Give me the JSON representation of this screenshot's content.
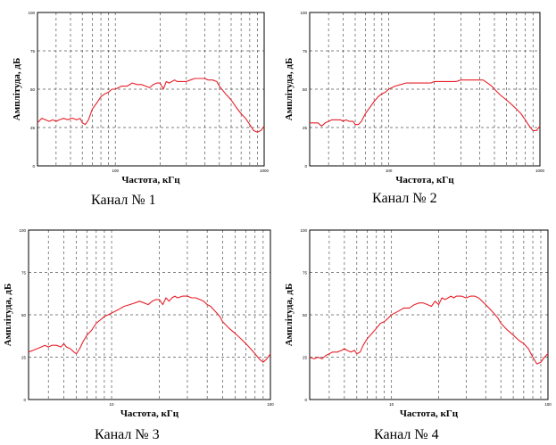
{
  "chart_data": [
    {
      "type": "line",
      "caption": "Канал № 1",
      "xlabel": "Частота, кГц",
      "ylabel": "Амплітуда, дБ",
      "x_scale": "log",
      "xlim": [
        30,
        1000
      ],
      "ylim": [
        0,
        100
      ],
      "x_tick_labels": [
        "100",
        "1000"
      ],
      "y_tick_labels": [
        "0",
        "25",
        "50",
        "75",
        "100"
      ],
      "grid": true,
      "line_color": "#e8202a",
      "series": [
        {
          "x": [
            30,
            32,
            34,
            36,
            38,
            40,
            42,
            45,
            48,
            50,
            52,
            55,
            58,
            60,
            63,
            66,
            70,
            75,
            80,
            85,
            90,
            95,
            100,
            110,
            120,
            130,
            140,
            150,
            160,
            170,
            180,
            190,
            200,
            210,
            220,
            230,
            240,
            250,
            260,
            280,
            300,
            320,
            340,
            360,
            380,
            400,
            420,
            450,
            480,
            500,
            550,
            600,
            650,
            700,
            750,
            800,
            850,
            900,
            950,
            1000
          ],
          "y": [
            28,
            31,
            30,
            29,
            30,
            29,
            30,
            31,
            30,
            31,
            31,
            30,
            31,
            28,
            27,
            30,
            37,
            41,
            45,
            47,
            48,
            50,
            50,
            52,
            52,
            54,
            53,
            53,
            52,
            51,
            53,
            54,
            54,
            50,
            55,
            54,
            55,
            56,
            55,
            55,
            55,
            56,
            57,
            57,
            57,
            57,
            56,
            56,
            55,
            52,
            47,
            43,
            38,
            34,
            31,
            27,
            23,
            22,
            23,
            26
          ]
        }
      ]
    },
    {
      "type": "line",
      "caption": "Канал № 2",
      "xlabel": "Частота, кГц",
      "ylabel": "Амплітуда, дБ",
      "x_scale": "log",
      "xlim": [
        30,
        1000
      ],
      "ylim": [
        0,
        100
      ],
      "x_tick_labels": [
        "100",
        "1000"
      ],
      "y_tick_labels": [
        "0",
        "25",
        "50",
        "75",
        "100"
      ],
      "grid": true,
      "line_color": "#e8202a",
      "series": [
        {
          "x": [
            30,
            32,
            34,
            36,
            38,
            40,
            42,
            45,
            48,
            50,
            52,
            55,
            58,
            60,
            63,
            66,
            70,
            75,
            80,
            85,
            90,
            95,
            100,
            110,
            120,
            130,
            140,
            150,
            160,
            170,
            180,
            190,
            200,
            210,
            220,
            230,
            240,
            250,
            260,
            280,
            300,
            320,
            340,
            360,
            380,
            400,
            420,
            450,
            480,
            500,
            550,
            600,
            650,
            700,
            750,
            800,
            850,
            900,
            950,
            1000
          ],
          "y": [
            28,
            28,
            28,
            26,
            28,
            29,
            30,
            30,
            30,
            29,
            30,
            29,
            29,
            27,
            27,
            29,
            34,
            38,
            42,
            45,
            47,
            48,
            50,
            52,
            53,
            54,
            54,
            54,
            54,
            54,
            54,
            54,
            55,
            55,
            55,
            55,
            55,
            55,
            55,
            55,
            56,
            56,
            56,
            56,
            56,
            56,
            56,
            54,
            52,
            50,
            46,
            43,
            40,
            37,
            34,
            30,
            26,
            23,
            23,
            26
          ]
        }
      ]
    },
    {
      "type": "line",
      "caption": "Канал № 3",
      "xlabel": "Частота, кГц",
      "ylabel": "Амплітуда, дБ",
      "x_scale": "log",
      "xlim": [
        3,
        100
      ],
      "ylim": [
        0,
        100
      ],
      "x_tick_labels": [
        "10",
        "100"
      ],
      "y_tick_labels": [
        "0",
        "25",
        "50",
        "75",
        "100"
      ],
      "grid": true,
      "line_color": "#e8202a",
      "series": [
        {
          "x": [
            3,
            3.2,
            3.4,
            3.6,
            3.8,
            4,
            4.2,
            4.5,
            4.8,
            5,
            5.2,
            5.5,
            5.8,
            6,
            6.3,
            6.6,
            7,
            7.5,
            8,
            8.5,
            9,
            9.5,
            10,
            11,
            12,
            13,
            14,
            15,
            16,
            17,
            18,
            19,
            20,
            21,
            22,
            23,
            24,
            25,
            26,
            28,
            30,
            32,
            34,
            36,
            38,
            40,
            42,
            45,
            48,
            50,
            55,
            60,
            65,
            70,
            75,
            80,
            85,
            90,
            95,
            100
          ],
          "y": [
            28,
            29,
            30,
            31,
            32,
            31,
            32,
            32,
            31,
            33,
            31,
            30,
            28,
            27,
            30,
            34,
            38,
            41,
            45,
            47,
            49,
            50,
            51,
            53,
            55,
            56,
            57,
            58,
            57,
            56,
            58,
            59,
            59,
            56,
            60,
            58,
            60,
            61,
            60,
            61,
            61,
            60,
            60,
            59,
            58,
            56,
            55,
            52,
            49,
            46,
            42,
            39,
            36,
            33,
            30,
            27,
            24,
            22,
            24,
            27
          ]
        }
      ]
    },
    {
      "type": "line",
      "caption": "Канал № 4",
      "xlabel": "Частота, кГц",
      "ylabel": "Амплітуда, дБ",
      "x_scale": "log",
      "xlim": [
        3,
        100
      ],
      "ylim": [
        0,
        100
      ],
      "x_tick_labels": [
        "10",
        "100"
      ],
      "y_tick_labels": [
        "0",
        "25",
        "50",
        "75",
        "100"
      ],
      "grid": true,
      "line_color": "#e8202a",
      "series": [
        {
          "x": [
            3,
            3.2,
            3.4,
            3.6,
            3.8,
            4,
            4.2,
            4.5,
            4.8,
            5,
            5.2,
            5.5,
            5.8,
            6,
            6.3,
            6.6,
            7,
            7.5,
            8,
            8.5,
            9,
            9.5,
            10,
            11,
            12,
            13,
            14,
            15,
            16,
            17,
            18,
            19,
            20,
            21,
            22,
            23,
            24,
            25,
            26,
            28,
            30,
            32,
            34,
            36,
            38,
            40,
            42,
            45,
            48,
            50,
            55,
            60,
            65,
            70,
            75,
            80,
            85,
            90,
            95,
            100
          ],
          "y": [
            25,
            24,
            25,
            24,
            26,
            27,
            28,
            28,
            29,
            30,
            29,
            28,
            29,
            27,
            28,
            32,
            36,
            39,
            42,
            45,
            46,
            48,
            50,
            52,
            54,
            54,
            56,
            57,
            57,
            56,
            55,
            58,
            56,
            60,
            59,
            60,
            61,
            60,
            61,
            61,
            60,
            61,
            61,
            60,
            58,
            56,
            54,
            51,
            48,
            45,
            41,
            38,
            35,
            33,
            30,
            25,
            21,
            22,
            25,
            27
          ]
        }
      ]
    }
  ]
}
